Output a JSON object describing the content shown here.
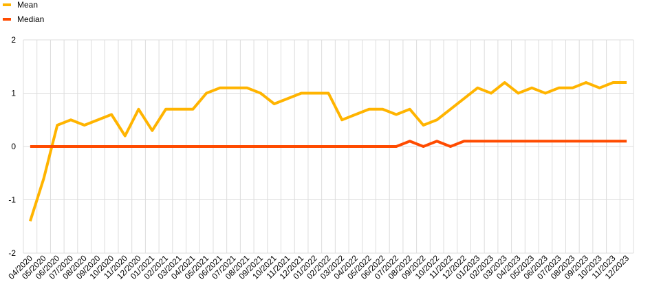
{
  "chart_data": {
    "type": "line",
    "categories": [
      "04/2020",
      "05/2020",
      "06/2020",
      "07/2020",
      "08/2020",
      "09/2020",
      "10/2020",
      "11/2020",
      "12/2020",
      "01/2021",
      "02/2021",
      "03/2021",
      "04/2021",
      "05/2021",
      "06/2021",
      "07/2021",
      "08/2021",
      "09/2021",
      "10/2021",
      "11/2021",
      "12/2021",
      "01/2022",
      "02/2022",
      "03/2022",
      "04/2022",
      "05/2022",
      "06/2022",
      "07/2022",
      "08/2022",
      "09/2022",
      "10/2022",
      "11/2022",
      "12/2022",
      "01/2023",
      "02/2023",
      "03/2023",
      "04/2023",
      "05/2023",
      "06/2023",
      "07/2023",
      "08/2023",
      "09/2023",
      "10/2023",
      "11/2023",
      "12/2023"
    ],
    "series": [
      {
        "name": "Mean",
        "color": "#ffb400",
        "values": [
          -1.4,
          -0.6,
          0.4,
          0.5,
          0.4,
          0.5,
          0.6,
          0.2,
          0.7,
          0.3,
          0.7,
          0.7,
          0.7,
          1.0,
          1.1,
          1.1,
          1.1,
          1.0,
          0.8,
          0.9,
          1.0,
          1.0,
          1.0,
          0.5,
          0.6,
          0.7,
          0.7,
          0.6,
          0.7,
          0.4,
          0.5,
          0.7,
          0.9,
          1.1,
          1.0,
          1.2,
          1.0,
          1.1,
          1.0,
          1.1,
          1.1,
          1.2,
          1.1,
          1.2,
          1.2
        ]
      },
      {
        "name": "Median",
        "color": "#ff4b00",
        "values": [
          0,
          0,
          0,
          0,
          0,
          0,
          0,
          0,
          0,
          0,
          0,
          0,
          0,
          0,
          0,
          0,
          0,
          0,
          0,
          0,
          0,
          0,
          0,
          0,
          0,
          0,
          0,
          0,
          0.1,
          0,
          0.1,
          0,
          0.1,
          0.1,
          0.1,
          0.1,
          0.1,
          0.1,
          0.1,
          0.1,
          0.1,
          0.1,
          0.1,
          0.1,
          0.1
        ]
      }
    ],
    "ylim": [
      -2,
      2
    ],
    "yticks": [
      -2,
      -1,
      0,
      1,
      2
    ],
    "grid": true
  }
}
